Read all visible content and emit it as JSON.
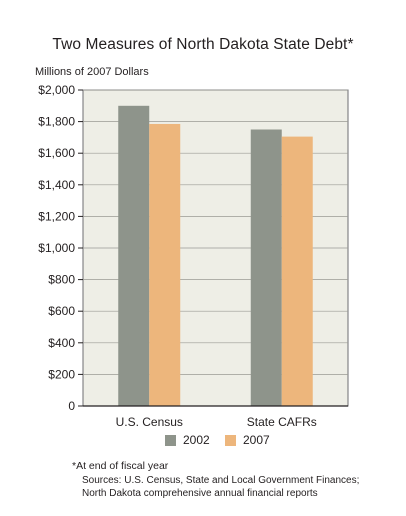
{
  "chart_data": {
    "type": "bar",
    "title": "Two Measures of North Dakota State Debt*",
    "ylabel": "Millions of 2007 Dollars",
    "categories": [
      "U.S. Census",
      "State CAFRs"
    ],
    "series": [
      {
        "name": "2002",
        "values": [
          1900,
          1750
        ],
        "color": "#8e948b"
      },
      {
        "name": "2007",
        "values": [
          1785,
          1705
        ],
        "color": "#edb67c"
      }
    ],
    "ylim": [
      0,
      2000
    ],
    "yticks": [
      0,
      200,
      400,
      600,
      800,
      1000,
      1200,
      1400,
      1600,
      1800,
      2000
    ],
    "ytick_labels": [
      "0",
      "$200",
      "$400",
      "$600",
      "$800",
      "$1,000",
      "$1,200",
      "$1,400",
      "$1,600",
      "$1,800",
      "$2,000"
    ],
    "grid": true,
    "legend_position": "bottom",
    "plot_background": "#eeeee6"
  },
  "footnote": "*At end of fiscal year",
  "sources": "Sources: U.S. Census, State and Local Government Finances; North Dakota comprehensive annual financial reports"
}
